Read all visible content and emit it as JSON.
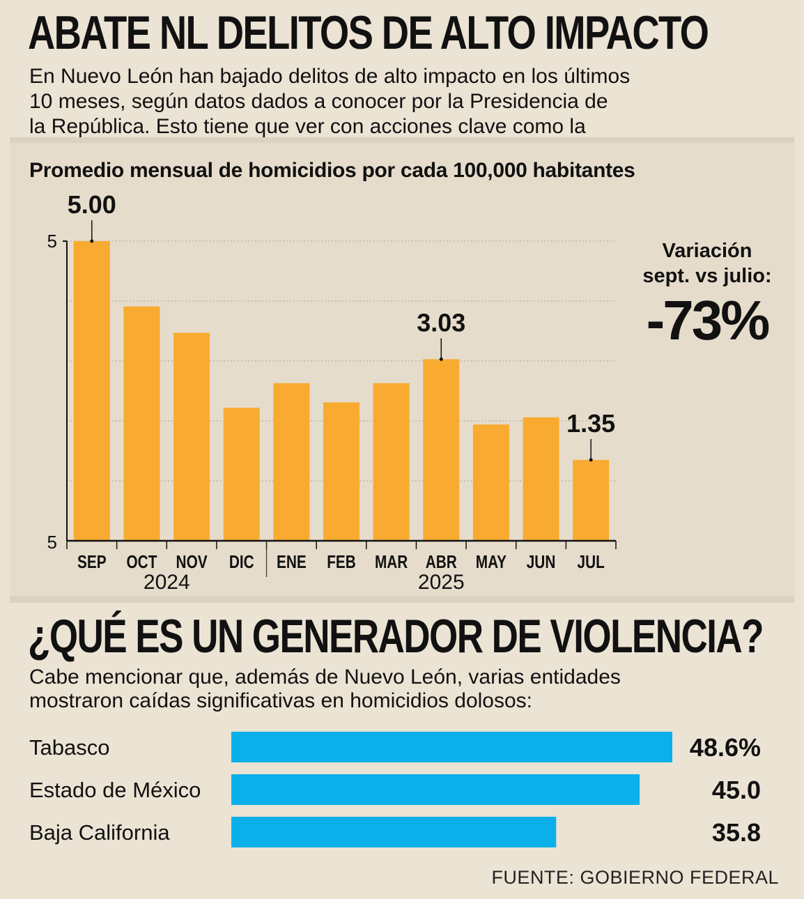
{
  "header": {
    "title": "ABATE NL DELITOS DE ALTO IMPACTO",
    "intro_lines": [
      "En Nuevo León han bajado delitos de alto impacto en los últimos",
      "10 meses, según datos dados a conocer por la Presidencia de",
      "la República. Esto tiene que ver con acciones clave como la"
    ]
  },
  "variation": {
    "label_line1": "Variación",
    "label_line2": "sept. vs julio:",
    "value": "-73%"
  },
  "section2": {
    "title": "¿QUÉ ES UN GENERADOR DE VIOLENCIA?",
    "intro_lines": [
      "Cabe mencionar que, además de Nuevo León, varias entidades",
      "mostraron caídas significativas en homicidios dolosos:"
    ]
  },
  "source": "FUENTE: GOBIERNO FEDERAL",
  "colors": {
    "bar": "#f8ab30",
    "hbar": "#0bb0ea",
    "background": "#ebe3d4",
    "panel": "#e6dccb"
  },
  "chart_data": [
    {
      "type": "bar",
      "title": "Promedio mensual de homicidios por cada 100,000 habitantes",
      "categories": [
        "SEP",
        "OCT",
        "NOV",
        "DIC",
        "ENE",
        "FEB",
        "MAR",
        "ABR",
        "MAY",
        "JUN",
        "JUL"
      ],
      "groups": [
        {
          "label": "2024",
          "categories": [
            "SEP",
            "OCT",
            "NOV",
            "DIC"
          ]
        },
        {
          "label": "2025",
          "categories": [
            "ENE",
            "FEB",
            "MAR",
            "ABR",
            "MAY",
            "JUN",
            "JUL"
          ]
        }
      ],
      "values": [
        5.0,
        3.91,
        3.47,
        2.22,
        2.63,
        2.31,
        2.63,
        3.03,
        1.94,
        2.06,
        1.35
      ],
      "data_labels": [
        {
          "category": "SEP",
          "text": "5.00"
        },
        {
          "category": "ABR",
          "text": "3.03"
        },
        {
          "category": "JUL",
          "text": "1.35"
        }
      ],
      "y_tick_labels": {
        "top": "5",
        "bottom": "5"
      },
      "ylim": [
        0,
        5
      ],
      "gridlines": [
        1,
        2,
        3,
        4,
        5
      ],
      "xlabel": "",
      "ylabel": ""
    },
    {
      "type": "bar",
      "orientation": "horizontal",
      "categories": [
        "Tabasco",
        "Estado de México",
        "Baja California"
      ],
      "values": [
        48.6,
        45.0,
        35.8
      ],
      "value_labels": [
        "48.6%",
        "45.0",
        "35.8"
      ],
      "xlim": [
        0,
        48.6
      ]
    }
  ]
}
